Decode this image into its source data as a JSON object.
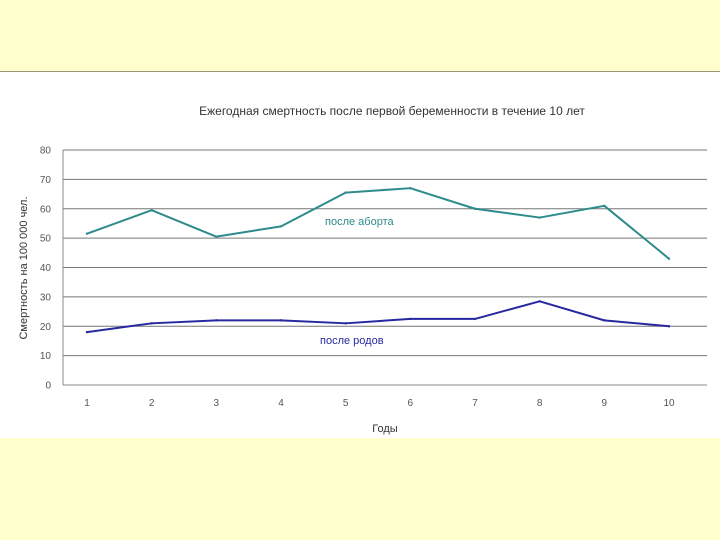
{
  "chart_data": {
    "type": "line",
    "title": "Ежегодная смертность после первой беременности в течение 10 лет",
    "xlabel": "Годы",
    "ylabel": "Смертность на 100 000 чел.",
    "ylim": [
      0,
      80
    ],
    "yticks": [
      0,
      10,
      20,
      30,
      40,
      50,
      60,
      70,
      80
    ],
    "categories": [
      "1",
      "2",
      "3",
      "4",
      "5",
      "6",
      "7",
      "8",
      "9",
      "10"
    ],
    "grid": true,
    "series": [
      {
        "name": "после аборта",
        "color": "#2E8B8B",
        "values": [
          51.5,
          59.5,
          50.5,
          54,
          65.5,
          67,
          60,
          57,
          61,
          43
        ]
      },
      {
        "name": "после родов",
        "color": "#2828A0",
        "values": [
          18,
          21,
          22,
          22,
          21,
          22.5,
          22.5,
          28.5,
          22,
          20
        ]
      }
    ]
  }
}
